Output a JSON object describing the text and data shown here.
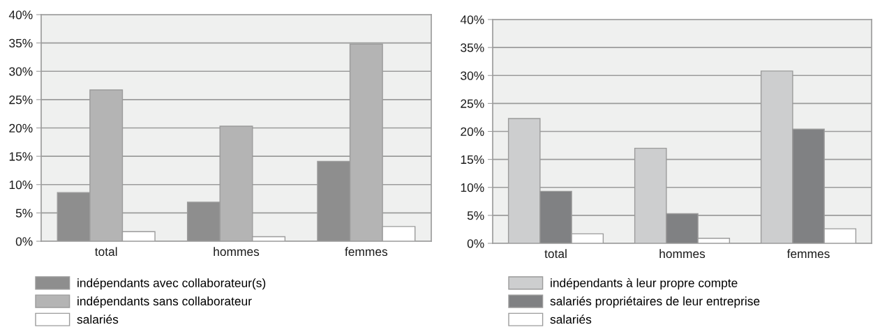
{
  "chart_data": [
    {
      "type": "bar",
      "categories": [
        "total",
        "hommes",
        "femmes"
      ],
      "series": [
        {
          "name": "indépendants avec collaborateur(s)",
          "color": "#8e8e8e",
          "values": [
            8.6,
            6.9,
            14.1
          ]
        },
        {
          "name": "indépendants sans collaborateur",
          "color": "#b4b4b4",
          "values": [
            26.7,
            20.3,
            34.8
          ]
        },
        {
          "name": "salariés",
          "color": "#ffffff",
          "values": [
            1.7,
            0.8,
            2.6
          ]
        }
      ],
      "ylim": [
        0,
        40
      ],
      "yticks": [
        {
          "value": 0,
          "label": "0%"
        },
        {
          "value": 5,
          "label": "5%"
        },
        {
          "value": 10,
          "label": "10%"
        },
        {
          "value": 15,
          "label": "15%"
        },
        {
          "value": 20,
          "label": "20%"
        },
        {
          "value": 25,
          "label": "25%"
        },
        {
          "value": 30,
          "label": "30%"
        },
        {
          "value": 35,
          "label": "35%"
        },
        {
          "value": 40,
          "label": "40%"
        }
      ],
      "grid": "y",
      "legend": "bottom left"
    },
    {
      "type": "bar",
      "categories": [
        "total",
        "hommes",
        "femmes"
      ],
      "series": [
        {
          "name": "indépendants à leur propre compte",
          "color": "#cdcecf",
          "values": [
            22.3,
            17.0,
            30.8
          ]
        },
        {
          "name": "salariés propriétaires de leur entreprise",
          "color": "#808183",
          "values": [
            9.3,
            5.3,
            20.4
          ]
        },
        {
          "name": "salariés",
          "color": "#ffffff",
          "values": [
            1.7,
            0.9,
            2.6
          ]
        }
      ],
      "ylim": [
        0,
        40
      ],
      "yticks": [
        {
          "value": 0,
          "label": "0%"
        },
        {
          "value": 5,
          "label": "5%"
        },
        {
          "value": 10,
          "label": "10%"
        },
        {
          "value": 15,
          "label": "15%"
        },
        {
          "value": 20,
          "label": "20%"
        },
        {
          "value": 25,
          "label": "25%"
        },
        {
          "value": 30,
          "label": "30%"
        },
        {
          "value": 35,
          "label": "35%"
        },
        {
          "value": 40,
          "label": "40%"
        }
      ],
      "grid": "y",
      "legend": "bottom left"
    }
  ]
}
